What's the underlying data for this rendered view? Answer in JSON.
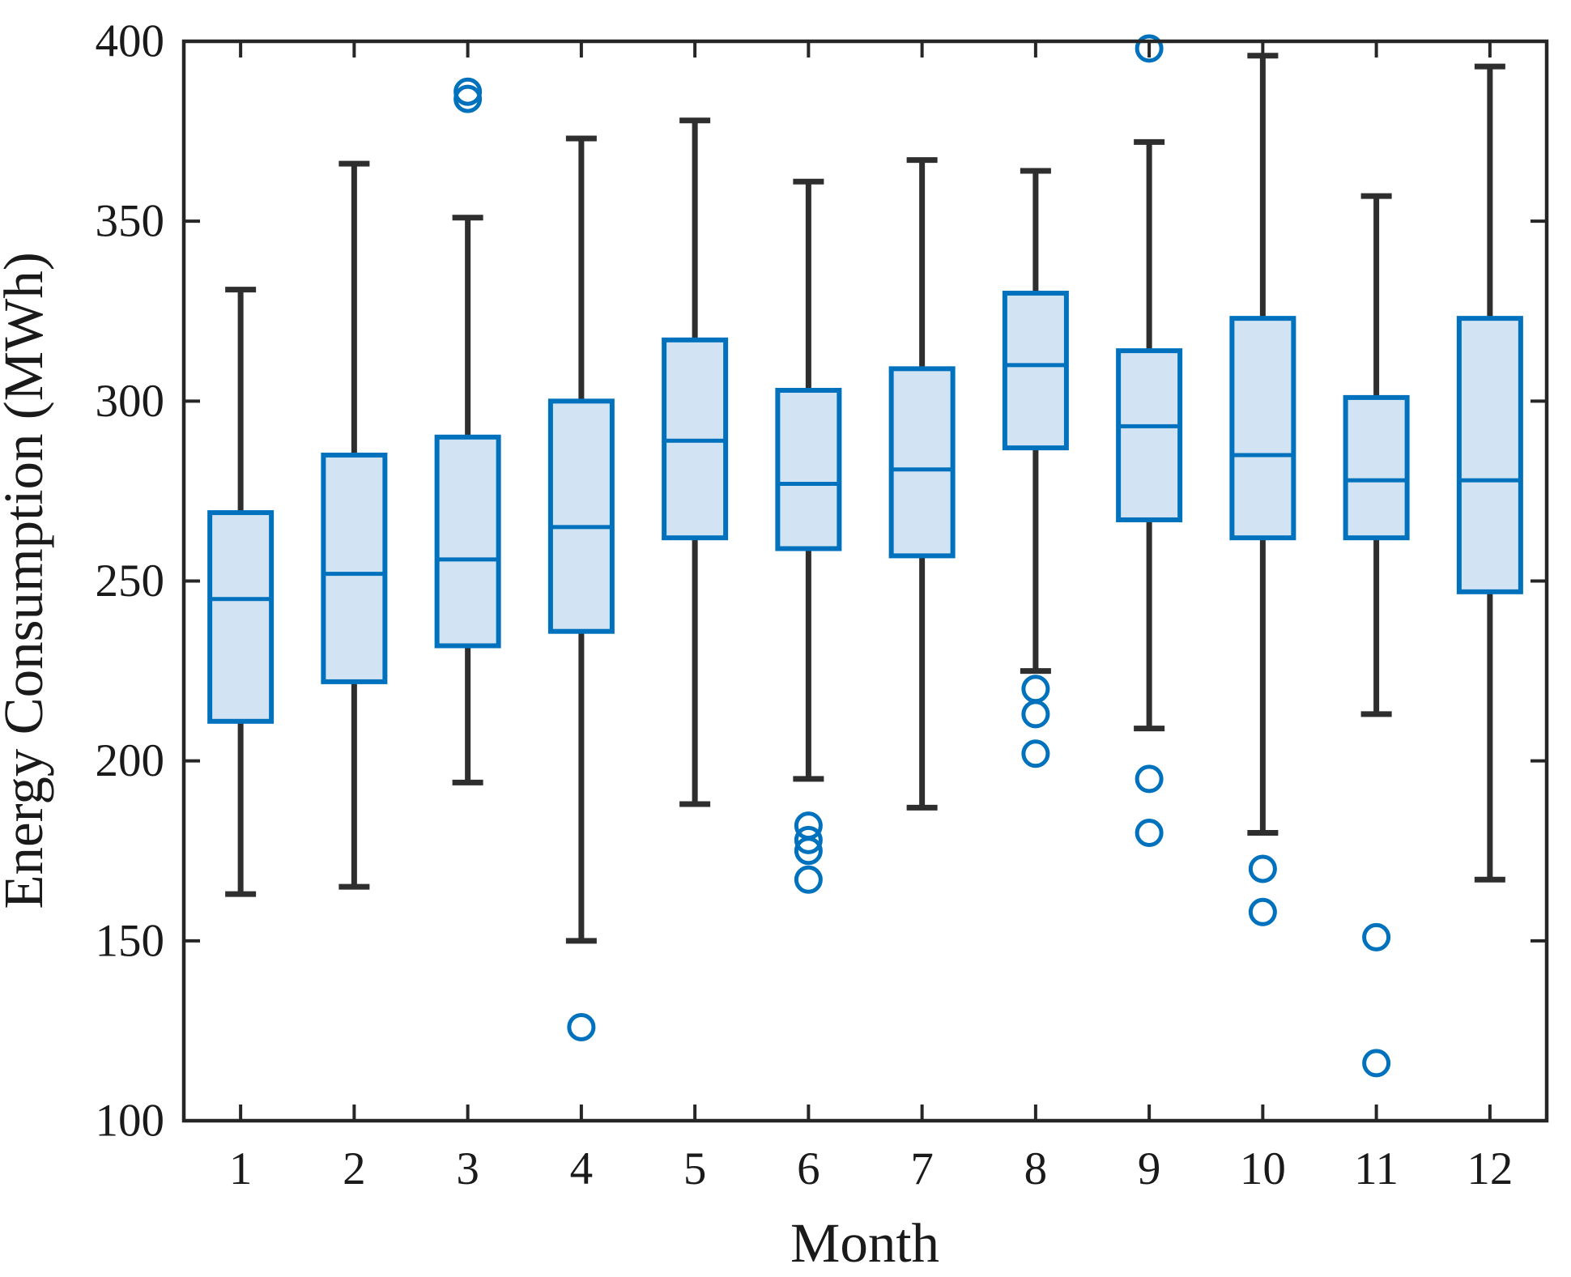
{
  "chart_data": {
    "type": "boxplot",
    "title": "",
    "xlabel": "Month",
    "ylabel": "Energy Consumption (MWh)",
    "categories": [
      "1",
      "2",
      "3",
      "4",
      "5",
      "6",
      "7",
      "8",
      "9",
      "10",
      "11",
      "12"
    ],
    "ylim": [
      100,
      400
    ],
    "yticks": [
      100,
      150,
      200,
      250,
      300,
      350,
      400
    ],
    "grid": false,
    "legend": false,
    "boxes": [
      {
        "month": "1",
        "whisker_low": 163,
        "q1": 211,
        "median": 245,
        "q3": 269,
        "whisker_high": 331,
        "outliers": []
      },
      {
        "month": "2",
        "whisker_low": 165,
        "q1": 222,
        "median": 252,
        "q3": 285,
        "whisker_high": 366,
        "outliers": []
      },
      {
        "month": "3",
        "whisker_low": 194,
        "q1": 232,
        "median": 256,
        "q3": 290,
        "whisker_high": 351,
        "outliers": [
          384,
          386
        ]
      },
      {
        "month": "4",
        "whisker_low": 150,
        "q1": 236,
        "median": 265,
        "q3": 300,
        "whisker_high": 373,
        "outliers": [
          126
        ]
      },
      {
        "month": "5",
        "whisker_low": 188,
        "q1": 262,
        "median": 289,
        "q3": 317,
        "whisker_high": 378,
        "outliers": []
      },
      {
        "month": "6",
        "whisker_low": 195,
        "q1": 259,
        "median": 277,
        "q3": 303,
        "whisker_high": 361,
        "outliers": [
          182,
          178,
          175,
          167
        ]
      },
      {
        "month": "7",
        "whisker_low": 187,
        "q1": 257,
        "median": 281,
        "q3": 309,
        "whisker_high": 367,
        "outliers": []
      },
      {
        "month": "8",
        "whisker_low": 225,
        "q1": 287,
        "median": 310,
        "q3": 330,
        "whisker_high": 364,
        "outliers": [
          220,
          213,
          202
        ]
      },
      {
        "month": "9",
        "whisker_low": 209,
        "q1": 267,
        "median": 293,
        "q3": 314,
        "whisker_high": 372,
        "outliers": [
          398,
          195,
          180
        ]
      },
      {
        "month": "10",
        "whisker_low": 180,
        "q1": 262,
        "median": 285,
        "q3": 323,
        "whisker_high": 396,
        "outliers": [
          170,
          158
        ]
      },
      {
        "month": "11",
        "whisker_low": 213,
        "q1": 262,
        "median": 278,
        "q3": 301,
        "whisker_high": 357,
        "outliers": [
          151,
          116
        ]
      },
      {
        "month": "12",
        "whisker_low": 167,
        "q1": 247,
        "median": 278,
        "q3": 323,
        "whisker_high": 393,
        "outliers": []
      }
    ],
    "colors": {
      "box_fill": "#D2E4F3",
      "box_edge": "#0072BD",
      "median": "#0072BD",
      "whisker": "#2E2E2E",
      "outlier": "#0072BD",
      "axis": "#262626",
      "text": "#1A1A1A"
    }
  }
}
